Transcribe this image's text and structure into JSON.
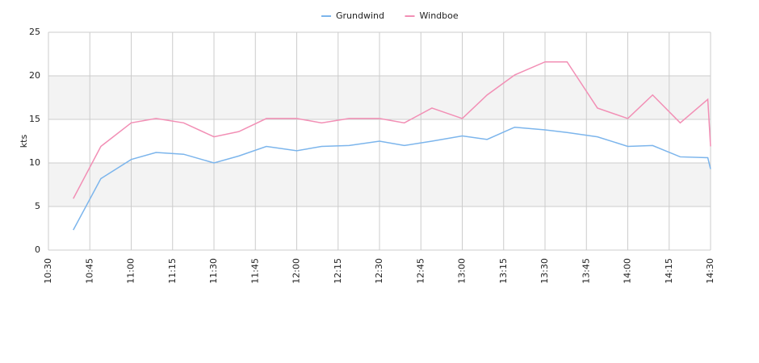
{
  "chart_data": {
    "type": "line",
    "y_label": "kts",
    "x": [
      639,
      649,
      660,
      669,
      679,
      690,
      699,
      709,
      720,
      729,
      739,
      750,
      759,
      769,
      780,
      789,
      799,
      810,
      818,
      829,
      840,
      849,
      859,
      869,
      870
    ],
    "series": [
      {
        "name": "Grundwind",
        "color": "#7cb5ec",
        "values": [
          2.3,
          8.2,
          10.4,
          11.2,
          11.0,
          10.0,
          10.8,
          11.9,
          11.4,
          11.9,
          12.0,
          12.5,
          12.0,
          12.5,
          13.1,
          12.7,
          14.1,
          13.8,
          13.5,
          13.0,
          11.9,
          12.0,
          10.7,
          10.6,
          9.3
        ]
      },
      {
        "name": "Windboe",
        "color": "#f28fb5",
        "values": [
          5.9,
          11.9,
          14.6,
          15.1,
          14.6,
          13.0,
          13.6,
          15.1,
          15.1,
          14.6,
          15.1,
          15.1,
          14.6,
          16.3,
          15.1,
          17.8,
          20.1,
          21.6,
          21.6,
          16.3,
          15.1,
          17.8,
          14.6,
          17.3,
          11.9
        ]
      }
    ],
    "xlim": [
      630,
      870
    ],
    "xticks": [
      {
        "value": 630,
        "label": "10:30"
      },
      {
        "value": 645,
        "label": "10:45"
      },
      {
        "value": 660,
        "label": "11:00"
      },
      {
        "value": 675,
        "label": "11:15"
      },
      {
        "value": 690,
        "label": "11:30"
      },
      {
        "value": 705,
        "label": "11:45"
      },
      {
        "value": 720,
        "label": "12:00"
      },
      {
        "value": 735,
        "label": "12:15"
      },
      {
        "value": 750,
        "label": "12:30"
      },
      {
        "value": 765,
        "label": "12:45"
      },
      {
        "value": 780,
        "label": "13:00"
      },
      {
        "value": 795,
        "label": "13:15"
      },
      {
        "value": 810,
        "label": "13:30"
      },
      {
        "value": 825,
        "label": "13:45"
      },
      {
        "value": 840,
        "label": "14:00"
      },
      {
        "value": 855,
        "label": "14:15"
      },
      {
        "value": 870,
        "label": "14:30"
      }
    ],
    "ylim": [
      0,
      25
    ],
    "yticks": [
      0,
      5,
      10,
      15,
      20,
      25
    ],
    "grid": true,
    "legend": "top"
  }
}
